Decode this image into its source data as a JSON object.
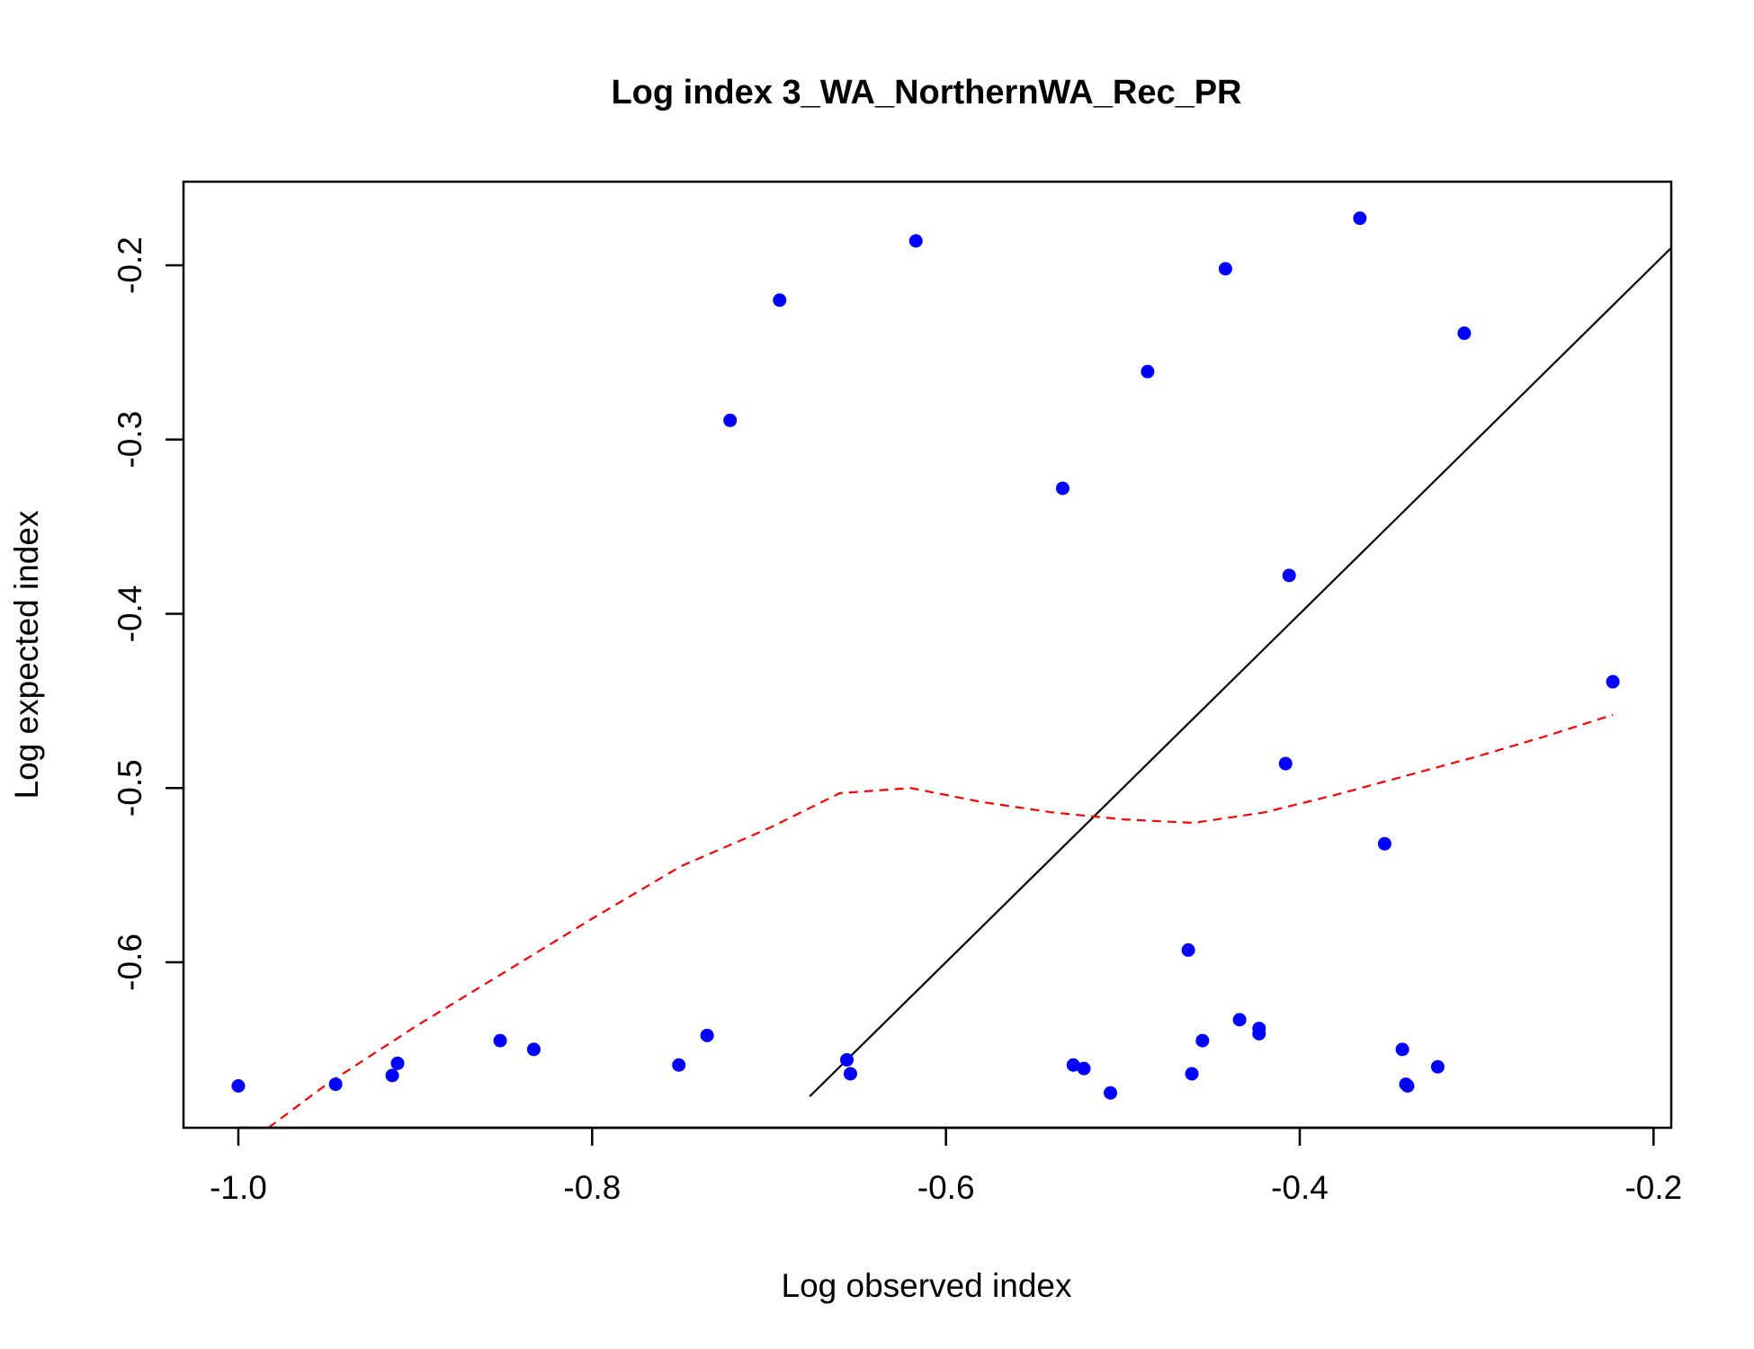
{
  "chart_data": {
    "type": "scatter",
    "title": "Log index 3_WA_NorthernWA_Rec_PR",
    "xlabel": "Log observed index",
    "ylabel": "Log expected index",
    "xlim": [
      -1.031,
      -0.19
    ],
    "ylim": [
      -0.695,
      -0.152
    ],
    "xticks": [
      -1.0,
      -0.8,
      -0.6,
      -0.4,
      -0.2
    ],
    "xtick_labels": [
      "-1.0",
      "-0.8",
      "-0.6",
      "-0.4",
      "-0.2"
    ],
    "yticks": [
      -0.6,
      -0.5,
      -0.4,
      -0.3,
      -0.2
    ],
    "ytick_labels": [
      "-0.6",
      "-0.5",
      "-0.4",
      "-0.3",
      "-0.2"
    ],
    "grid": false,
    "legend": "none",
    "points": {
      "color": "#0000ff",
      "x": [
        -1.0,
        -0.945,
        -0.913,
        -0.91,
        -0.852,
        -0.833,
        -0.751,
        -0.735,
        -0.722,
        -0.694,
        -0.656,
        -0.654,
        -0.617,
        -0.534,
        -0.528,
        -0.522,
        -0.507,
        -0.486,
        -0.463,
        -0.461,
        -0.455,
        -0.442,
        -0.434,
        -0.423,
        -0.423,
        -0.408,
        -0.406,
        -0.366,
        -0.352,
        -0.342,
        -0.34,
        -0.339,
        -0.322,
        -0.307,
        -0.223
      ],
      "y": [
        -0.671,
        -0.67,
        -0.665,
        -0.658,
        -0.645,
        -0.65,
        -0.659,
        -0.642,
        -0.289,
        -0.22,
        -0.656,
        -0.664,
        -0.186,
        -0.328,
        -0.659,
        -0.661,
        -0.675,
        -0.261,
        -0.593,
        -0.664,
        -0.645,
        -0.202,
        -0.633,
        -0.638,
        -0.641,
        -0.486,
        -0.378,
        -0.173,
        -0.532,
        -0.65,
        -0.67,
        -0.671,
        -0.66,
        -0.239,
        -0.439
      ]
    },
    "identity_line": {
      "color": "#000000",
      "x": [
        -0.677,
        -0.19
      ],
      "y": [
        -0.677,
        -0.19
      ]
    },
    "smoother": {
      "color": "#ff0000",
      "style": "dashed",
      "x": [
        -0.983,
        -0.95,
        -0.9,
        -0.85,
        -0.8,
        -0.75,
        -0.7,
        -0.66,
        -0.62,
        -0.58,
        -0.54,
        -0.5,
        -0.46,
        -0.42,
        -0.38,
        -0.34,
        -0.3,
        -0.26,
        -0.223
      ],
      "y": [
        -0.695,
        -0.67,
        -0.637,
        -0.606,
        -0.575,
        -0.545,
        -0.523,
        -0.503,
        -0.5,
        -0.508,
        -0.514,
        -0.518,
        -0.52,
        -0.514,
        -0.504,
        -0.493,
        -0.482,
        -0.47,
        -0.458
      ]
    }
  }
}
